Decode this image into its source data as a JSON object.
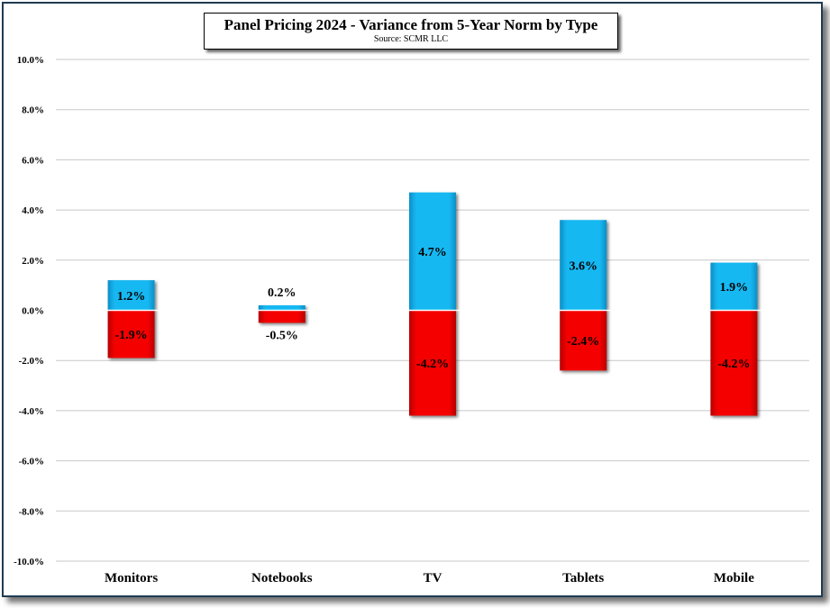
{
  "chart_data": {
    "type": "bar",
    "title": "Panel Pricing 2024 - Variance  from 5-Year Norm by Type",
    "subtitle": "Source: SCMR LLC",
    "categories": [
      "Monitors",
      "Notebooks",
      "TV",
      "Tablets",
      "Mobile"
    ],
    "series": [
      {
        "values": [
          1.2,
          0.2,
          4.7,
          3.6,
          1.9
        ],
        "labels": [
          "1.2%",
          "0.2%",
          "4.7%",
          "3.6%",
          "1.9%"
        ],
        "color": "#17b4ee"
      },
      {
        "values": [
          -1.9,
          -0.5,
          -4.2,
          -2.4,
          -4.2
        ],
        "labels": [
          "-1.9%",
          "-0.5%",
          "-4.2%",
          "-2.4%",
          "-4.2%"
        ],
        "color": "#f00000"
      }
    ],
    "ylim": [
      -10,
      10
    ],
    "yticks": [
      10,
      8,
      6,
      4,
      2,
      0,
      -2,
      -4,
      -6,
      -8,
      -10
    ],
    "ytick_labels": [
      "10.0%",
      "8.0%",
      "6.0%",
      "4.0%",
      "2.0%",
      "0.0%",
      "-2.0%",
      "-4.0%",
      "-6.0%",
      "-8.0%",
      "-10.0%"
    ],
    "grid": true,
    "legend": "none"
  }
}
